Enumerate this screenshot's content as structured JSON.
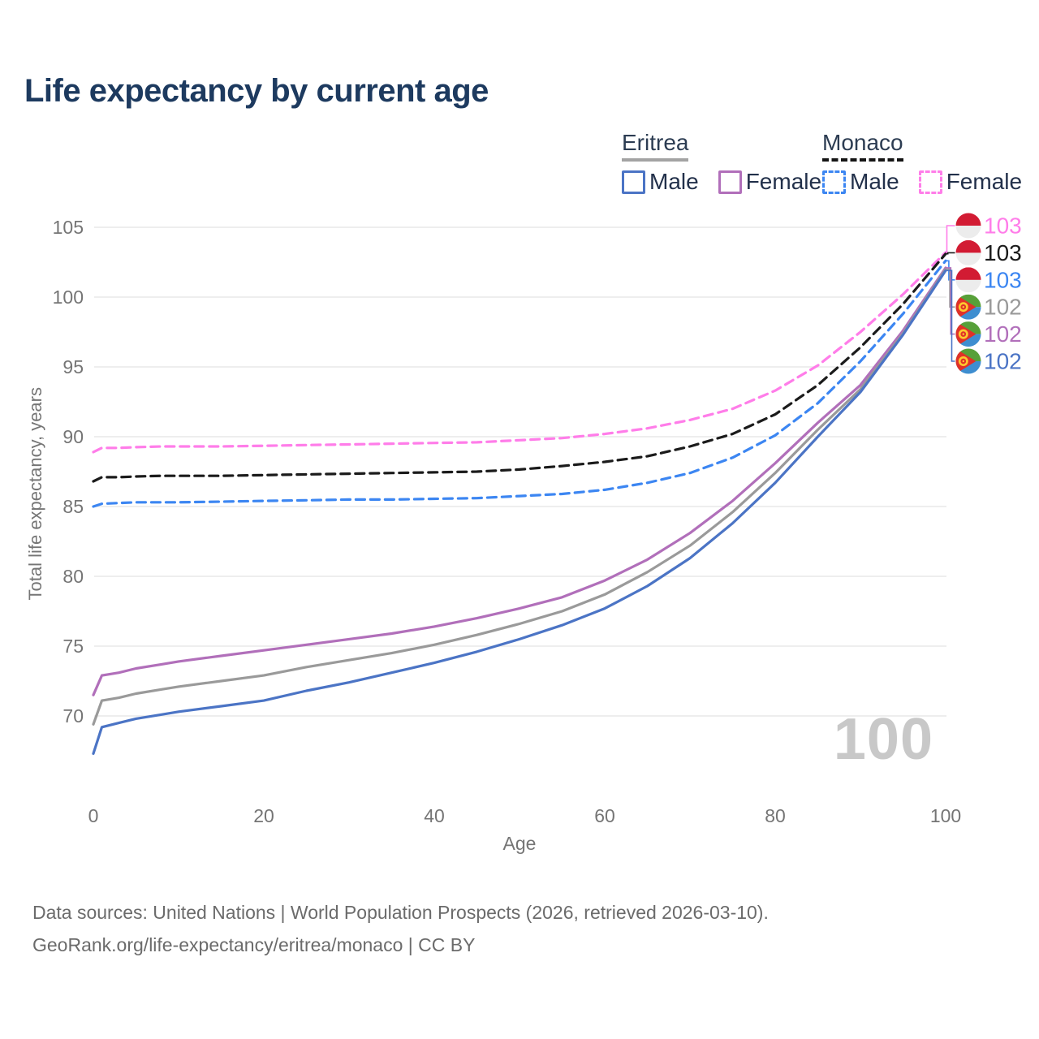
{
  "title": "Life expectancy by current age",
  "colors": {
    "title_text": "#1d3a5f",
    "axis_text": "#757575",
    "gridline": "#e9e9e9",
    "watermark": "#c8c8c8",
    "footer_text": "#6b6b6b",
    "legend_text": "#22304a"
  },
  "legend": {
    "groups": [
      {
        "name": "Eritrea",
        "line_style": "solid",
        "underline_color": "#a3a3a3",
        "items": [
          {
            "label": "Male",
            "color": "#4b74c5",
            "dash": false
          },
          {
            "label": "Female",
            "color": "#b16fba",
            "dash": false
          }
        ]
      },
      {
        "name": "Monaco",
        "line_style": "dashed",
        "underline_color": "#151515",
        "items": [
          {
            "label": "Male",
            "color": "#3c86f2",
            "dash": true
          },
          {
            "label": "Female",
            "color": "#ff7de9",
            "dash": true
          }
        ]
      }
    ]
  },
  "chart_data": {
    "type": "line",
    "title": "Life expectancy by current age",
    "xlabel": "Age",
    "ylabel": "Total life expectancy, years",
    "xlim": [
      0,
      100
    ],
    "ylim": [
      66.5,
      105.5
    ],
    "xticks": [
      0,
      20,
      40,
      60,
      80,
      100
    ],
    "yticks": [
      70,
      75,
      80,
      85,
      90,
      95,
      100,
      105
    ],
    "grid": "horizontal",
    "legend_position": "top-right",
    "age_indicator": "100",
    "x": [
      0,
      1,
      3,
      5,
      8,
      10,
      15,
      20,
      25,
      30,
      35,
      40,
      45,
      50,
      55,
      60,
      65,
      70,
      75,
      80,
      85,
      90,
      95,
      100
    ],
    "series": [
      {
        "id": "monaco_female",
        "name": "Monaco Female",
        "color": "#ff7de9",
        "dash": true,
        "values": [
          88.9,
          89.2,
          89.2,
          89.25,
          89.3,
          89.3,
          89.3,
          89.35,
          89.4,
          89.45,
          89.5,
          89.55,
          89.6,
          89.75,
          89.9,
          90.2,
          90.6,
          91.2,
          92.0,
          93.3,
          95.1,
          97.5,
          100.2,
          103.2
        ]
      },
      {
        "id": "monaco_both",
        "name": "Monaco Both sexes",
        "color": "#1b1b1b",
        "dash": true,
        "values": [
          86.8,
          87.1,
          87.1,
          87.15,
          87.2,
          87.2,
          87.2,
          87.25,
          87.3,
          87.35,
          87.4,
          87.45,
          87.5,
          87.65,
          87.9,
          88.2,
          88.6,
          89.3,
          90.2,
          91.6,
          93.7,
          96.4,
          99.5,
          103.1
        ]
      },
      {
        "id": "monaco_male",
        "name": "Monaco Male",
        "color": "#3c86f2",
        "dash": true,
        "values": [
          85.0,
          85.2,
          85.25,
          85.3,
          85.3,
          85.3,
          85.35,
          85.4,
          85.45,
          85.5,
          85.5,
          85.55,
          85.6,
          85.75,
          85.9,
          86.2,
          86.7,
          87.4,
          88.5,
          90.1,
          92.4,
          95.4,
          98.8,
          102.6
        ]
      },
      {
        "id": "eritrea_female",
        "name": "Eritrea Female",
        "color": "#b16fba",
        "dash": false,
        "values": [
          71.5,
          72.9,
          73.1,
          73.4,
          73.7,
          73.9,
          74.3,
          74.7,
          75.1,
          75.5,
          75.9,
          76.4,
          77.0,
          77.7,
          78.5,
          79.7,
          81.2,
          83.1,
          85.4,
          88.1,
          91.0,
          93.7,
          97.6,
          102.1
        ]
      },
      {
        "id": "eritrea_both",
        "name": "Eritrea Both sexes",
        "color": "#9a9a9a",
        "dash": false,
        "values": [
          69.4,
          71.1,
          71.3,
          71.6,
          71.9,
          72.1,
          72.5,
          72.9,
          73.5,
          74.0,
          74.5,
          75.1,
          75.8,
          76.6,
          77.5,
          78.7,
          80.3,
          82.2,
          84.6,
          87.4,
          90.5,
          93.4,
          97.4,
          102.0
        ]
      },
      {
        "id": "eritrea_male",
        "name": "Eritrea Male",
        "color": "#4b74c5",
        "dash": false,
        "values": [
          67.3,
          69.2,
          69.5,
          69.8,
          70.1,
          70.3,
          70.7,
          71.1,
          71.8,
          72.4,
          73.1,
          73.8,
          74.6,
          75.5,
          76.5,
          77.7,
          79.3,
          81.3,
          83.8,
          86.7,
          90.0,
          93.2,
          97.3,
          101.9
        ]
      }
    ],
    "end_labels": [
      {
        "series": "monaco_female",
        "value": "103",
        "flag": "monaco"
      },
      {
        "series": "monaco_both",
        "value": "103",
        "flag": "monaco"
      },
      {
        "series": "monaco_male",
        "value": "103",
        "flag": "monaco"
      },
      {
        "series": "eritrea_both",
        "value": "102",
        "flag": "eritrea"
      },
      {
        "series": "eritrea_female",
        "value": "102",
        "flag": "eritrea"
      },
      {
        "series": "eritrea_male",
        "value": "102",
        "flag": "eritrea"
      }
    ],
    "flag_colors": {
      "monaco_red": "#d21b33",
      "monaco_white": "#ececec",
      "eritrea_green": "#57a039",
      "eritrea_blue": "#3e8ed0",
      "eritrea_red": "#e03128",
      "eritrea_yellow": "#fdc82f"
    }
  },
  "footer": {
    "line1": "Data sources: United Nations | World Population Prospects (2026, retrieved 2026-03-10).",
    "line2": "GeoRank.org/life-expectancy/eritrea/monaco | CC BY"
  }
}
